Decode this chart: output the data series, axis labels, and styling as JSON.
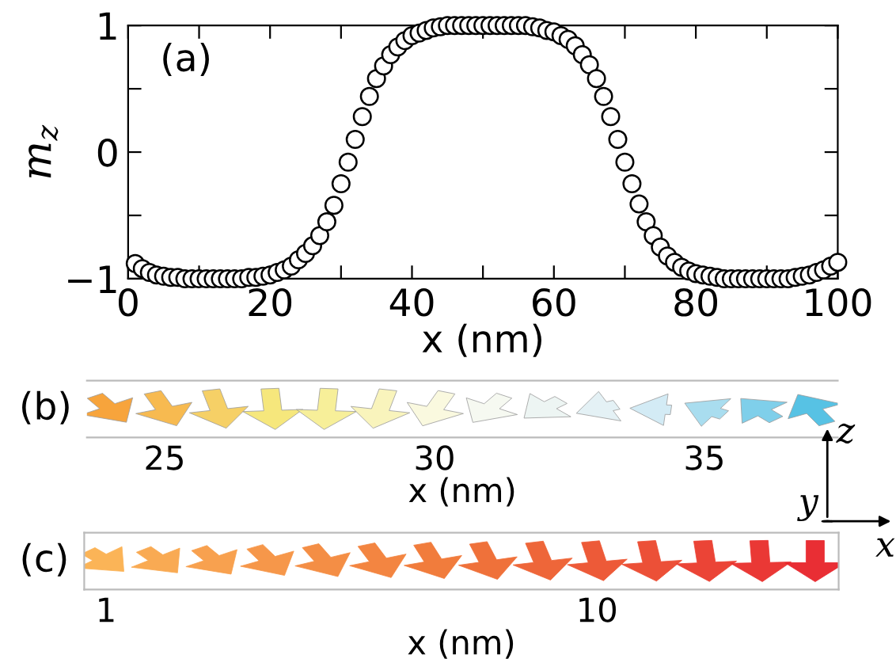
{
  "chart_data": [
    {
      "type": "scatter",
      "title": "(a)",
      "xlabel": "x (nm)",
      "ylabel": "m$_{z}$",
      "marker": "circle",
      "grid": false,
      "xlim": [
        0,
        100
      ],
      "xticks": [
        0,
        {
          "value": 10,
          "label": null
        },
        20,
        {
          "value": 30,
          "label": null
        },
        40,
        {
          "value": 50,
          "label": null
        },
        60,
        {
          "value": 70,
          "label": null
        },
        80,
        {
          "value": 90,
          "label": null
        },
        100
      ],
      "ylim": [
        -1,
        1
      ],
      "yticks": [
        {
          "value": -1,
          "label": "−1"
        },
        {
          "value": -0.5,
          "label": null
        },
        0,
        {
          "value": 0.5,
          "label": null
        },
        1
      ],
      "series": [
        {
          "color": "#000000",
          "x": [
            1,
            2,
            3,
            4,
            5,
            6,
            7,
            8,
            9,
            10,
            11,
            12,
            13,
            14,
            15,
            16,
            17,
            18,
            19,
            20,
            21,
            22,
            23,
            24,
            25,
            26,
            27,
            28,
            29,
            30,
            31,
            32,
            33,
            34,
            35,
            36,
            37,
            38,
            39,
            40,
            41,
            42,
            43,
            44,
            45,
            46,
            47,
            48,
            49,
            50,
            51,
            52,
            53,
            54,
            55,
            56,
            57,
            58,
            59,
            60,
            61,
            62,
            63,
            64,
            65,
            66,
            67,
            68,
            69,
            70,
            71,
            72,
            73,
            74,
            75,
            76,
            77,
            78,
            79,
            80,
            81,
            82,
            83,
            84,
            85,
            86,
            87,
            88,
            89,
            90,
            91,
            92,
            93,
            94,
            95,
            96,
            97,
            98,
            99,
            100
          ],
          "values": [
            -0.88,
            -0.92,
            -0.95,
            -0.97,
            -0.98,
            -0.99,
            -0.99,
            -1.0,
            -1.0,
            -1.0,
            -1.0,
            -1.0,
            -1.0,
            -1.0,
            -1.0,
            -1.0,
            -0.99,
            -0.99,
            -0.98,
            -0.97,
            -0.95,
            -0.93,
            -0.9,
            -0.85,
            -0.8,
            -0.74,
            -0.66,
            -0.55,
            -0.42,
            -0.25,
            -0.08,
            0.1,
            0.28,
            0.44,
            0.58,
            0.68,
            0.77,
            0.83,
            0.88,
            0.92,
            0.94,
            0.96,
            0.98,
            0.99,
            1.0,
            1.0,
            1.0,
            1.0,
            1.0,
            1.0,
            1.0,
            1.0,
            1.0,
            1.0,
            1.0,
            1.0,
            0.99,
            0.98,
            0.96,
            0.95,
            0.92,
            0.89,
            0.84,
            0.77,
            0.69,
            0.58,
            0.44,
            0.28,
            0.1,
            -0.08,
            -0.25,
            -0.41,
            -0.55,
            -0.66,
            -0.75,
            -0.82,
            -0.87,
            -0.91,
            -0.94,
            -0.96,
            -0.97,
            -0.98,
            -0.99,
            -1.0,
            -1.0,
            -1.0,
            -1.0,
            -1.0,
            -1.0,
            -1.0,
            -1.0,
            -1.0,
            -1.0,
            -0.99,
            -0.98,
            -0.97,
            -0.95,
            -0.93,
            -0.9,
            -0.87
          ]
        }
      ]
    },
    {
      "type": "other",
      "title": "(b)",
      "xlabel": "x (nm)",
      "annotations": [
        "25",
        "30",
        "35"
      ]
    },
    {
      "type": "other",
      "title": "(c)",
      "xlabel": "x (nm)",
      "annotations": [
        "1",
        "10",
        "z",
        "y",
        "x"
      ]
    }
  ]
}
